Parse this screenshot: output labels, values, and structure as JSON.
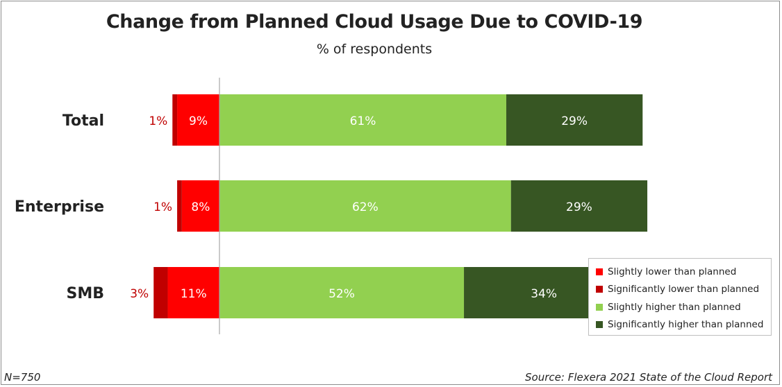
{
  "chart_data": {
    "type": "bar",
    "orientation": "horizontal-diverging",
    "title": "Change from Planned Cloud Usage Due to COVID-19",
    "subtitle": "% of respondents",
    "categories": [
      "Total",
      "Enterprise",
      "SMB"
    ],
    "negative_series": [
      {
        "name": "Slightly lower than planned",
        "color": "#ff0000",
        "values": [
          9,
          8,
          11
        ],
        "labels": [
          "9%",
          "8%",
          "11%"
        ]
      },
      {
        "name": "Significantly lower than planned",
        "color": "#c00000",
        "values": [
          1,
          1,
          3
        ],
        "labels": [
          "1%",
          "1%",
          "3%"
        ]
      }
    ],
    "positive_series": [
      {
        "name": "Slightly higher than planned",
        "color": "#92d050",
        "values": [
          61,
          62,
          52
        ],
        "labels": [
          "61%",
          "62%",
          "52%"
        ]
      },
      {
        "name": "Significantly higher than planned",
        "color": "#375623",
        "values": [
          29,
          29,
          34
        ],
        "labels": [
          "29%",
          "29%",
          "34%"
        ]
      }
    ],
    "legend": {
      "position": "bottom-right",
      "entries": [
        {
          "label": "Slightly lower than planned",
          "color": "#ff0000"
        },
        {
          "label": "Significantly lower than planned",
          "color": "#c00000"
        },
        {
          "label": "Slightly higher than planned",
          "color": "#92d050"
        },
        {
          "label": "Significantly higher than planned",
          "color": "#375623"
        }
      ]
    },
    "footnote": "N=750",
    "source": "Source: Flexera 2021 State of the Cloud Report",
    "label_colors": {
      "outside": "#c00000",
      "inside": "#ffffff"
    }
  }
}
